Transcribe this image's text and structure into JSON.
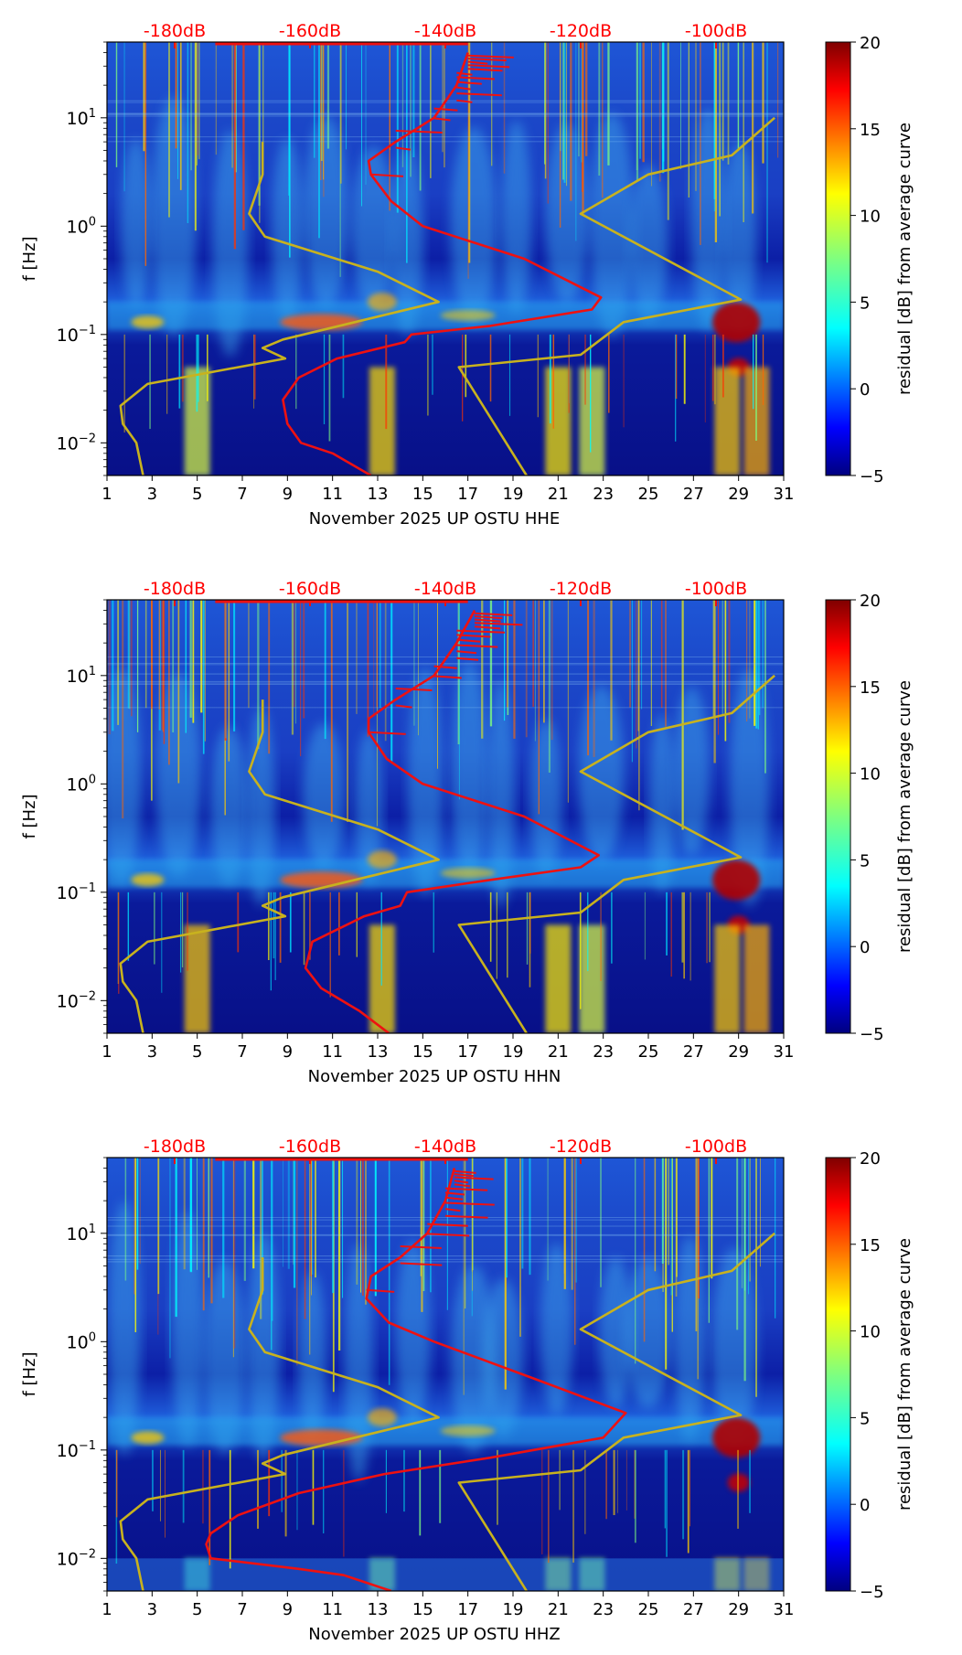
{
  "chart_data": {
    "shared": {
      "x_ticks": [
        "1",
        "3",
        "5",
        "7",
        "9",
        "11",
        "13",
        "15",
        "17",
        "19",
        "21",
        "23",
        "25",
        "27",
        "29",
        "31"
      ],
      "x_range": [
        1,
        31
      ],
      "y_label": "f [Hz]",
      "y_range_hz": [
        0.005,
        50
      ],
      "y_ticks": [
        {
          "value": 10,
          "base": "10",
          "exp": "1"
        },
        {
          "value": 1,
          "base": "10",
          "exp": "0"
        },
        {
          "value": 0.1,
          "base": "10",
          "exp": "−1"
        },
        {
          "value": 0.01,
          "base": "10",
          "exp": "−2"
        }
      ],
      "top_db_labels": [
        {
          "label": "-180dB",
          "x": 4
        },
        {
          "label": "-160dB",
          "x": 10
        },
        {
          "label": "-140dB",
          "x": 16
        },
        {
          "label": "-120dB",
          "x": 22
        },
        {
          "label": "-100dB",
          "x": 28
        }
      ],
      "colorbar": {
        "label": "residual [dB] from average curve",
        "range": [
          -5,
          20
        ],
        "ticks": [
          "20",
          "15",
          "10",
          "5",
          "0",
          "−5"
        ],
        "tick_values": [
          20,
          15,
          10,
          5,
          0,
          -5
        ],
        "colormap": "jet"
      },
      "colors": {
        "db_label": "#ff0000",
        "psd_curve": "#ee1111",
        "noise_model": "#c8b21e"
      },
      "noise_model_low": [
        [
          2.6,
          0.005
        ],
        [
          2.3,
          0.01
        ],
        [
          1.7,
          0.015
        ],
        [
          1.6,
          0.022
        ],
        [
          2.8,
          0.035
        ],
        [
          8.9,
          0.06
        ],
        [
          7.9,
          0.075
        ],
        [
          8.8,
          0.09
        ],
        [
          15.7,
          0.2
        ],
        [
          13,
          0.38
        ],
        [
          8,
          0.8
        ],
        [
          7.3,
          1.3
        ],
        [
          7.9,
          3
        ],
        [
          7.9,
          6
        ]
      ],
      "noise_model_high": [
        [
          19.6,
          0.005
        ],
        [
          16.6,
          0.05
        ],
        [
          22,
          0.065
        ],
        [
          23.9,
          0.13
        ],
        [
          29.1,
          0.21
        ],
        [
          22,
          1.3
        ],
        [
          25,
          3
        ],
        [
          28.7,
          4.5
        ],
        [
          30.6,
          10
        ]
      ]
    },
    "panels": [
      {
        "name": "HHE",
        "xlabel": "November 2025 UP OSTU  HHE",
        "psd_curve": [
          [
            12.7,
            0.005
          ],
          [
            11,
            0.008
          ],
          [
            9.6,
            0.01
          ],
          [
            9,
            0.015
          ],
          [
            8.8,
            0.025
          ],
          [
            9.5,
            0.04
          ],
          [
            11.2,
            0.06
          ],
          [
            14.2,
            0.085
          ],
          [
            14.5,
            0.1
          ],
          [
            18,
            0.12
          ],
          [
            22.5,
            0.17
          ],
          [
            22.9,
            0.22
          ],
          [
            19.5,
            0.5
          ],
          [
            15,
            1
          ],
          [
            13.6,
            1.7
          ],
          [
            12.7,
            3
          ],
          [
            12.6,
            4
          ],
          [
            13.8,
            6
          ],
          [
            15.5,
            10
          ],
          [
            16.5,
            20
          ],
          [
            17,
            40
          ]
        ]
      },
      {
        "name": "HHN",
        "xlabel": "November 2025 UP OSTU  HHN",
        "psd_curve": [
          [
            13.5,
            0.005
          ],
          [
            12.2,
            0.008
          ],
          [
            10.5,
            0.013
          ],
          [
            9.8,
            0.02
          ],
          [
            10.1,
            0.035
          ],
          [
            12.4,
            0.06
          ],
          [
            14,
            0.075
          ],
          [
            14.3,
            0.1
          ],
          [
            18,
            0.13
          ],
          [
            22,
            0.17
          ],
          [
            22.8,
            0.22
          ],
          [
            19.5,
            0.5
          ],
          [
            15,
            1
          ],
          [
            13.4,
            1.7
          ],
          [
            12.6,
            3
          ],
          [
            12.6,
            4
          ],
          [
            13.8,
            6
          ],
          [
            15.5,
            10
          ],
          [
            16.5,
            20
          ],
          [
            17.3,
            40
          ]
        ]
      },
      {
        "name": "HHZ",
        "xlabel": "November 2025 UP OSTU  HHZ",
        "psd_curve": [
          [
            13.6,
            0.005
          ],
          [
            11.5,
            0.007
          ],
          [
            9.5,
            0.008
          ],
          [
            5.6,
            0.01
          ],
          [
            5.4,
            0.0135
          ],
          [
            5.6,
            0.017
          ],
          [
            6.8,
            0.025
          ],
          [
            9.5,
            0.04
          ],
          [
            13.3,
            0.06
          ],
          [
            18,
            0.085
          ],
          [
            23,
            0.13
          ],
          [
            24,
            0.22
          ],
          [
            20,
            0.45
          ],
          [
            15.5,
            1
          ],
          [
            13.5,
            1.5
          ],
          [
            12.5,
            2.5
          ],
          [
            12.7,
            4
          ],
          [
            14,
            6
          ],
          [
            15.2,
            10
          ],
          [
            16,
            20
          ],
          [
            16.4,
            40
          ]
        ]
      }
    ]
  }
}
